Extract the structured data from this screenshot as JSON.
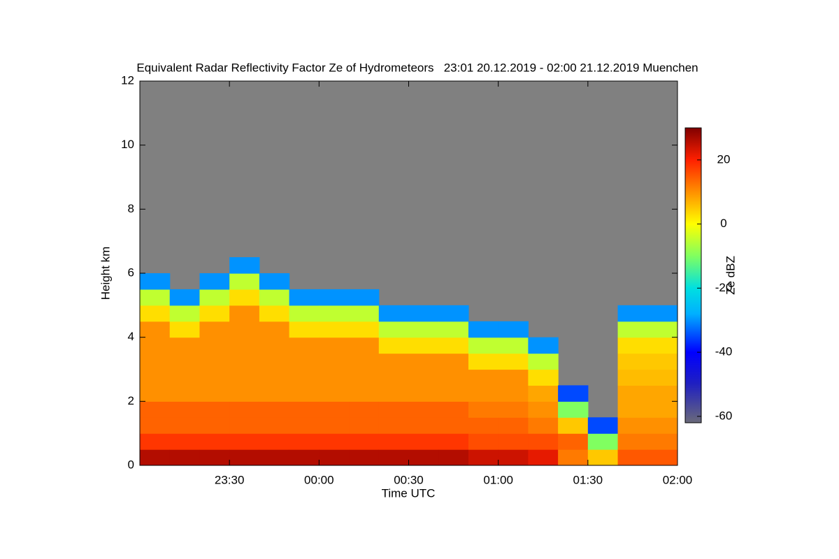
{
  "chart_data": {
    "type": "heatmap",
    "title": "Equivalent Radar Reflectivity Factor Ze of Hydrometeors   23:01 20.12.2019 - 02:00 21.12.2019 Muenchen",
    "x_label": "Time UTC",
    "y_label": "Height km",
    "colorbar_label": "Ze dBZ",
    "xlim": [
      0,
      180
    ],
    "xticks": [
      {
        "value": 30,
        "label": "23:30"
      },
      {
        "value": 60,
        "label": "00:00"
      },
      {
        "value": 90,
        "label": "00:30"
      },
      {
        "value": 120,
        "label": "01:00"
      },
      {
        "value": 150,
        "label": "01:30"
      },
      {
        "value": 180,
        "label": "02:00"
      }
    ],
    "ylim": [
      0,
      12
    ],
    "yticks": [
      0,
      2,
      4,
      6,
      8,
      10,
      12
    ],
    "clim": [
      -62,
      30
    ],
    "cticks": [
      -60,
      -40,
      -20,
      0,
      20
    ],
    "background": "#808080",
    "colormap": [
      [
        -62,
        "#6a6a7a"
      ],
      [
        -50,
        "#2020c0"
      ],
      [
        -40,
        "#0000ff"
      ],
      [
        -28,
        "#00b0ff"
      ],
      [
        -20,
        "#00e0e0"
      ],
      [
        -10,
        "#80ff60"
      ],
      [
        0,
        "#ffff00"
      ],
      [
        10,
        "#ff9000"
      ],
      [
        20,
        "#ff2000"
      ],
      [
        30,
        "#800000"
      ]
    ],
    "x": [
      5,
      15,
      25,
      35,
      45,
      55,
      65,
      75,
      85,
      95,
      105,
      115,
      125,
      135,
      145,
      155,
      165,
      175
    ],
    "y": [
      0.25,
      0.75,
      1.25,
      1.75,
      2.25,
      2.75,
      3.25,
      3.75,
      4.25,
      4.75,
      5.25,
      5.75,
      6.25,
      6.75
    ],
    "z": [
      [
        26,
        18,
        14,
        14,
        10,
        10,
        10,
        10,
        10,
        3,
        -5,
        -30,
        null,
        null
      ],
      [
        26,
        18,
        14,
        14,
        10,
        10,
        10,
        10,
        3,
        -5,
        -30,
        null,
        null,
        null
      ],
      [
        26,
        18,
        14,
        14,
        10,
        10,
        10,
        10,
        10,
        3,
        -5,
        -30,
        null,
        null
      ],
      [
        26,
        18,
        14,
        14,
        10,
        10,
        10,
        10,
        10,
        10,
        3,
        -5,
        -30,
        null
      ],
      [
        26,
        18,
        14,
        14,
        10,
        10,
        10,
        10,
        10,
        3,
        -5,
        -30,
        null,
        null
      ],
      [
        26,
        18,
        14,
        14,
        10,
        10,
        10,
        10,
        3,
        -5,
        -30,
        null,
        null,
        null
      ],
      [
        26,
        18,
        14,
        14,
        10,
        10,
        10,
        10,
        3,
        -5,
        -30,
        null,
        null,
        null
      ],
      [
        26,
        18,
        14,
        14,
        10,
        10,
        10,
        10,
        3,
        -5,
        -30,
        null,
        null,
        null
      ],
      [
        26,
        18,
        14,
        14,
        10,
        10,
        10,
        3,
        -5,
        -30,
        null,
        null,
        null,
        null
      ],
      [
        26,
        18,
        14,
        14,
        10,
        10,
        10,
        3,
        -5,
        -30,
        null,
        null,
        null,
        null
      ],
      [
        26,
        18,
        14,
        14,
        10,
        10,
        10,
        3,
        -5,
        -30,
        null,
        null,
        null,
        null
      ],
      [
        24,
        16,
        14,
        12,
        10,
        10,
        3,
        -5,
        -30,
        null,
        null,
        null,
        null,
        null
      ],
      [
        24,
        16,
        14,
        12,
        10,
        10,
        3,
        -5,
        -30,
        null,
        null,
        null,
        null,
        null
      ],
      [
        22,
        16,
        12,
        10,
        8,
        3,
        -5,
        -30,
        null,
        null,
        null,
        null,
        null,
        null
      ],
      [
        12,
        14,
        5,
        -10,
        -35,
        null,
        null,
        null,
        null,
        null,
        null,
        null,
        null,
        null
      ],
      [
        5,
        -10,
        -35,
        null,
        null,
        null,
        null,
        null,
        null,
        null,
        null,
        null,
        null,
        null
      ],
      [
        15,
        12,
        10,
        8,
        8,
        6,
        5,
        3,
        -5,
        -30,
        null,
        null,
        null,
        null
      ],
      [
        15,
        12,
        10,
        8,
        8,
        6,
        5,
        3,
        -5,
        -30,
        null,
        null,
        null,
        null
      ]
    ]
  }
}
